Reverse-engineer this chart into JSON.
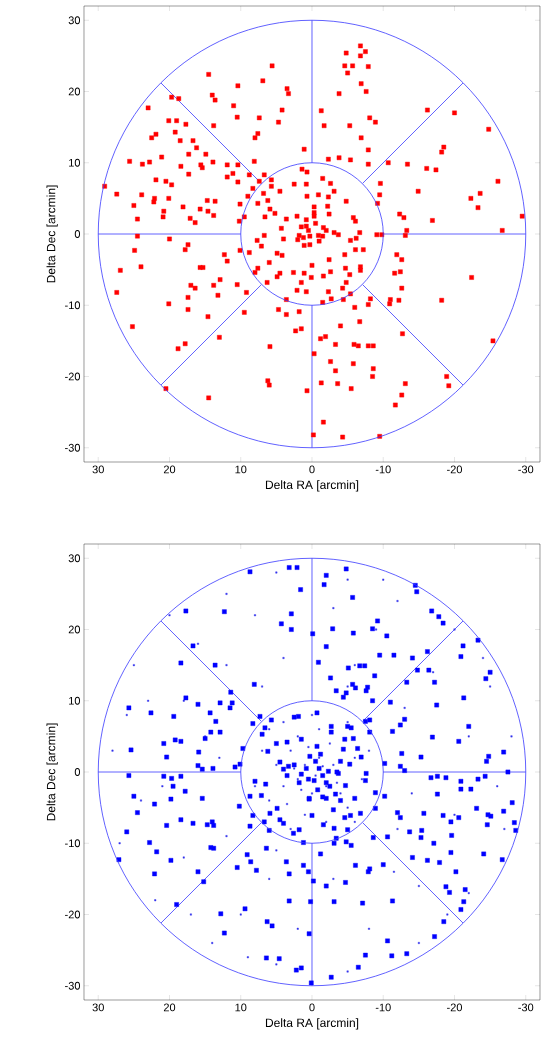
{
  "chart_data": [
    {
      "type": "scatter",
      "xlabel": "Delta RA [arcmin]",
      "ylabel": "Delta Dec [arcmin]",
      "xlim": [
        32,
        -32
      ],
      "ylim": [
        -32,
        32
      ],
      "xticks": [
        30,
        20,
        10,
        0,
        -10,
        -20,
        -30
      ],
      "yticks": [
        -30,
        -20,
        -10,
        0,
        10,
        20,
        30
      ],
      "series": [
        {
          "type": "line",
          "marker": "none",
          "color": "#3a3aff",
          "x": [
            10,
            30
          ],
          "values": [
            0,
            0
          ]
        },
        {
          "type": "line",
          "marker": "none",
          "color": "#3a3aff",
          "x": [
            7.1,
            21.2
          ],
          "values": [
            7.1,
            21.2
          ]
        },
        {
          "type": "line",
          "marker": "none",
          "color": "#3a3aff",
          "x": [
            0,
            0
          ],
          "values": [
            10,
            30
          ]
        },
        {
          "type": "line",
          "marker": "none",
          "color": "#3a3aff",
          "x": [
            -7.1,
            -21.2
          ],
          "values": [
            7.1,
            21.2
          ]
        },
        {
          "type": "line",
          "marker": "none",
          "color": "#3a3aff",
          "x": [
            -10,
            -30
          ],
          "values": [
            0,
            0
          ]
        },
        {
          "type": "line",
          "marker": "none",
          "color": "#3a3aff",
          "x": [
            -7.1,
            -21.2
          ],
          "values": [
            -7.1,
            -21.2
          ]
        },
        {
          "type": "line",
          "marker": "none",
          "color": "#3a3aff",
          "x": [
            0,
            0
          ],
          "values": [
            -10,
            -30
          ]
        },
        {
          "type": "line",
          "marker": "none",
          "color": "#3a3aff",
          "x": [
            7.1,
            21.2
          ],
          "values": [
            -7.1,
            -21.2
          ]
        },
        {
          "marker": "square",
          "color": "#ff0000",
          "x": [
            5.6,
            14.5,
            10.4,
            6.9,
            3.5,
            3.3,
            14.0,
            13.6,
            19.7,
            18.7,
            23.0,
            11.0,
            4.2,
            10.5,
            7.4,
            4.7,
            20.1,
            19.0,
            17.7,
            13.8,
            21.9,
            22.5,
            19.2,
            7.6,
            8.0,
            18.5,
            16.7,
            16.2,
            1.1,
            17.3,
            14.9,
            21.1,
            25.6,
            23.8,
            22.8,
            13.9,
            8.1,
            18.4,
            15.6,
            15.4,
            11.9,
            10.4,
            17.3,
            11.1,
            11.9,
            8.8,
            6.7,
            1.4,
            0.7,
            29.1,
            21.9,
            20.5,
            19.7,
            10.4,
            7.4,
            5.7,
            5.7,
            8.3,
            27.4,
            23.9,
            22.1,
            22.2,
            20.1,
            4.5,
            2.5,
            0.8,
            9.0,
            6.8,
            25.0,
            18.1,
            14.7,
            13.6,
            10.1,
            7.6,
            6.2,
            0.7,
            20.8,
            20.9,
            15.7,
            14.6,
            13.8,
            5.9,
            5.2,
            24.5,
            17.1,
            16.4,
            9.5,
            6.6,
            3.6,
            2.1,
            10.2,
            4.3,
            0.8,
            24.5,
            20.0,
            6.7,
            4.0,
            1.8,
            0.3,
            17.4,
            24.9,
            17.8,
            7.7,
            7.1,
            1.1,
            12.3,
            10.1,
            8.8,
            4.9,
            4.2,
            11.9,
            6.0,
            26.9,
            24.0,
            15.7,
            15.3,
            7.6,
            8.0,
            4.5,
            4.9,
            2.6,
            1.1,
            12.9,
            17.0,
            16.4,
            13.8,
            10.5,
            6.3,
            1.5,
            27.4,
            13.2,
            9.2,
            17.4,
            2.1,
            0.8,
            3.6,
            20.1,
            17.4,
            4.7,
            3.6,
            1.8,
            9.5,
            14.6,
            25.2,
            2.3,
            1.5,
            13.0,
            17.8,
            18.8,
            5.9,
            6.2,
            6.0,
            20.5,
            14.5,
            0.7,
            -0.2,
            -6.8,
            -4.8,
            -7.5,
            -6.8,
            -4.6,
            -5.7,
            -7.9,
            -5.0,
            -6.9,
            -7.6,
            -3.8,
            -1.3,
            -16.2,
            -20.0,
            -1.7,
            -5.3,
            -8.1,
            -8.9,
            -24.8,
            -6.9,
            -7.9,
            -18.5,
            -18.2,
            -2.3,
            -3.8,
            -5.4,
            -7.9,
            -10.7,
            -13.4,
            -16.1,
            -17.4,
            -26.1,
            -1.5,
            -2.6,
            -3.1,
            -9.6,
            -9.5,
            -9.2,
            -14.9,
            -22.3,
            -23.6,
            -23.3,
            -0.9,
            -2.3,
            -4.8,
            -29.5,
            -12.3,
            -12.9,
            -16.9,
            -5.8,
            -6.1,
            -0.3,
            -2.2,
            -2.4,
            -0.3,
            -26.7,
            -13.3,
            -13.1,
            -9.1,
            -9.8,
            -6.7,
            -5.4,
            -6.2,
            -1.6,
            -3.1,
            -3.7,
            -0.9,
            -6.1,
            -7.2,
            -4.6,
            -2.4,
            -11.9,
            -12.6,
            -11.6,
            -12.4,
            -22.4,
            -6.8,
            -6.8,
            -4.7,
            -5.3,
            -2.6,
            -1.6,
            0,
            0.1,
            -4.8,
            -4.3,
            -12.6,
            -2.3,
            -5.4,
            -4.4,
            -1.5,
            -2.7,
            -6.0,
            -8.2,
            -7.9,
            -11.0,
            -10.9,
            -12.2,
            -18.2,
            -6.7,
            -4.0,
            -12.7,
            -25.4,
            -1.2,
            -1.9,
            -3.3,
            -5.9,
            -6.5,
            -7.9,
            -8.6,
            -0.3,
            -2.6,
            -5.8,
            -3.3,
            -8.6,
            -8.5,
            -1.3,
            -3.6,
            -5.5,
            -13.1,
            -12.6,
            -11.7,
            -18.9,
            -19.2,
            -1.6,
            -4.3,
            -9.5,
            0.5,
            1.2,
            -1.0,
            0.3,
            -0.5,
            1.5,
            -1.5,
            2.0,
            -2.0,
            0.8,
            -0.3
          ],
          "values": [
            23.6,
            22.4,
            20.8,
            21.5,
            20.4,
            19.7,
            19.5,
            18.8,
            19.2,
            19.0,
            17.7,
            18.0,
            17.4,
            16.4,
            16.3,
            15.7,
            15.9,
            15.9,
            15.4,
            15.2,
            14.0,
            13.5,
            14.3,
            14.1,
            13.5,
            13.1,
            13.1,
            12.1,
            11.9,
            11.2,
            11.2,
            10.8,
            10.2,
            9.8,
            10.1,
            10.1,
            10.2,
            9.5,
            9.7,
            9.3,
            9.7,
            9.7,
            8.4,
            8.5,
            8.0,
            8.3,
            8.3,
            9.1,
            8.7,
            6.7,
            7.6,
            7.4,
            6.9,
            7.3,
            7.4,
            7.6,
            6.7,
            6.4,
            5.6,
            5.5,
            5.0,
            4.5,
            5.0,
            6.0,
            7.0,
            7.0,
            5.3,
            5.7,
            4.0,
            3.8,
            4.7,
            4.6,
            4.2,
            4.3,
            4.7,
            5.3,
            3.2,
            2.4,
            3.5,
            3.2,
            2.6,
            3.5,
            2.9,
            2.1,
            2.2,
            1.6,
            2.4,
            2.4,
            2.1,
            2.5,
            1.8,
            0.8,
            1.1,
            -0.3,
            -0.7,
            -0.2,
            -0.7,
            -0.2,
            -0.3,
            -1.5,
            -2.3,
            -2.2,
            -0.9,
            -1.7,
            -1.6,
            -2.9,
            -2.3,
            -2.6,
            -2.7,
            -3.0,
            -3.8,
            -4.0,
            -5.1,
            -4.6,
            -4.7,
            -4.7,
            -4.8,
            -5.4,
            -5.5,
            -6.0,
            -5.4,
            -5.5,
            -6.4,
            -7.2,
            -7.6,
            -7.2,
            -7.1,
            -6.8,
            -6.8,
            -8.2,
            -8.6,
            -8.2,
            -8.9,
            -7.9,
            -8.1,
            -9.2,
            -9.8,
            -10.6,
            -10.6,
            -11.3,
            -10.9,
            -11.0,
            -11.6,
            -13.0,
            -13.6,
            -13.3,
            -14.5,
            -15.4,
            -16.1,
            -15.8,
            -20.6,
            -21.2,
            -21.7,
            -23.0,
            -22.0,
            -28.2,
            26.4,
            25.4,
            25.6,
            25.0,
            23.6,
            23.6,
            23.5,
            22.6,
            21.1,
            20.0,
            19.7,
            17.3,
            17.4,
            17.0,
            15.2,
            15.2,
            16.3,
            15.7,
            14.7,
            13.5,
            11.8,
            12.2,
            11.5,
            10.5,
            10.7,
            10.4,
            9.8,
            10.0,
            9.8,
            9.2,
            9.0,
            7.4,
            7.8,
            7.1,
            6.0,
            7.1,
            5.5,
            4.3,
            6.0,
            5.0,
            5.7,
            3.7,
            5.5,
            5.2,
            4.6,
            2.5,
            2.8,
            2.3,
            1.9,
            2.3,
            1.8,
            3.8,
            3.9,
            2.8,
            2.5,
            0.5,
            0.5,
            -0.2,
            -0.1,
            -0.1,
            0.2,
            -0.9,
            -0.6,
            0.9,
            0.2,
            -0.1,
            -0.2,
            -2.2,
            -2.2,
            -2.9,
            -3.6,
            -2.9,
            -3.6,
            -5.5,
            -5.3,
            -6.1,
            -4.6,
            -5.1,
            -4.8,
            -5.7,
            -5.3,
            -5.9,
            -4.4,
            -6.1,
            -6.8,
            -7.6,
            -7.6,
            -8.1,
            -8.4,
            -9.2,
            -9.6,
            -9.1,
            -10.3,
            -9.1,
            -9.9,
            -9.2,
            -9.8,
            -9.3,
            -9.3,
            -12.3,
            -12.9,
            -14.0,
            -15.0,
            -14.7,
            -14.4,
            -15.5,
            -15.5,
            -15.7,
            -15.7,
            -15.7,
            -16.8,
            -17.9,
            -18.2,
            -19.2,
            -18.9,
            -20.0,
            -20.9,
            -21.0,
            -21.7,
            -21.0,
            -22.6,
            -24.0,
            -20.0,
            -21.3,
            -26.4,
            -28.5,
            -28.4,
            0.5,
            -0.5,
            -1.0,
            -1.5,
            1.5,
            1.0,
            -0.3,
            -0.8,
            0.5,
            2.0,
            3.0
          ]
        }
      ]
    },
    {
      "type": "scatter",
      "xlabel": "Delta RA [arcmin]",
      "ylabel": "Delta Dec [arcmin]",
      "xlim": [
        32,
        -32
      ],
      "ylim": [
        -32,
        32
      ],
      "xticks": [
        30,
        20,
        10,
        0,
        -10,
        -20,
        -30
      ],
      "yticks": [
        -30,
        -20,
        -10,
        0,
        10,
        20,
        30
      ],
      "series": [
        {
          "type": "line",
          "marker": "none",
          "color": "#3a3aff",
          "x": [
            10,
            30
          ],
          "values": [
            0,
            0
          ]
        },
        {
          "type": "line",
          "marker": "none",
          "color": "#3a3aff",
          "x": [
            7.1,
            21.2
          ],
          "values": [
            7.1,
            21.2
          ]
        },
        {
          "type": "line",
          "marker": "none",
          "color": "#3a3aff",
          "x": [
            0,
            0
          ],
          "values": [
            10,
            30
          ]
        },
        {
          "type": "line",
          "marker": "none",
          "color": "#3a3aff",
          "x": [
            -7.1,
            -21.2
          ],
          "values": [
            7.1,
            21.2
          ]
        },
        {
          "type": "line",
          "marker": "none",
          "color": "#3a3aff",
          "x": [
            -10,
            -30
          ],
          "values": [
            0,
            0
          ]
        },
        {
          "type": "line",
          "marker": "none",
          "color": "#3a3aff",
          "x": [
            -7.1,
            -21.2
          ],
          "values": [
            -7.1,
            -21.2
          ]
        },
        {
          "type": "line",
          "marker": "none",
          "color": "#3a3aff",
          "x": [
            0,
            0
          ],
          "values": [
            -10,
            -30
          ]
        },
        {
          "type": "line",
          "marker": "none",
          "color": "#3a3aff",
          "x": [
            7.1,
            21.2
          ],
          "values": [
            -7.1,
            -21.2
          ]
        },
        {
          "marker": "square",
          "color": "#3333ee",
          "x": [
            25,
            20,
            12,
            5,
            -5,
            -12,
            -20,
            -25,
            -28,
            -27,
            -22,
            -15,
            -5,
            5,
            14,
            22,
            27,
            28,
            24,
            18,
            16,
            8,
            -3,
            -9,
            -17,
            -22,
            -20,
            -15,
            -8,
            2,
            10,
            18,
            21,
            15,
            12,
            4,
            -6,
            -13,
            -14,
            -11.5,
            -3,
            6,
            12,
            13,
            26,
            -26,
            9,
            -10,
            17,
            -19,
            23,
            -24,
            7,
            -5,
            -12,
            5,
            1,
            -1,
            2,
            -2,
            3,
            -3,
            0,
            4,
            -4,
            2,
            -1,
            5,
            -6,
            6,
            -5,
            1,
            -2,
            7,
            -7,
            3,
            8,
            -8,
            0,
            4,
            -5,
            6,
            -6,
            0.5,
            -2.5,
            3.5,
            -3.5,
            1.5,
            -0.5,
            2.5,
            -1.5
          ],
          "values": [
            15,
            22,
            25,
            28,
            27,
            24,
            20,
            12,
            5,
            -8,
            -17,
            -24,
            -28,
            -27,
            -24,
            -18,
            -10,
            3,
            -4,
            10,
            18,
            22,
            23,
            20,
            14,
            5,
            -6,
            -16,
            -22,
            -22,
            -20,
            -12,
            -2,
            5,
            15,
            16,
            15,
            9,
            -3,
            -14,
            -15,
            -15,
            -9,
            2,
            8,
            -2,
            -26,
            27,
            -20,
            -20,
            10,
            16,
            12,
            12,
            -8,
            -11,
            1,
            2,
            -1,
            -2,
            3,
            1,
            -3,
            -2,
            -3,
            5,
            6,
            1,
            2,
            -4,
            -5,
            -6,
            -7,
            3,
            -1,
            -8,
            -2,
            3,
            8,
            7,
            7,
            6,
            -7,
            3.5,
            4,
            -4.5,
            -1.5,
            -2.5,
            -0.5,
            0.5,
            0.8
          ]
        },
        {
          "marker": "square",
          "color": "#0000ff",
          "x": [
            8.7,
            3.2,
            2.1,
            1.6,
            17.7,
            12.3,
            2.9,
            4.3,
            2.9,
            -0.1,
            16.7,
            18.4,
            13.6,
            8.1,
            11.4,
            17.7,
            25.7,
            22.6,
            19.4,
            16.0,
            14.3,
            12.9,
            11.5,
            11.2,
            13.5,
            7.3,
            5.7,
            8.3,
            6.6,
            7.0,
            2.5,
            1.9,
            14.2,
            12.9,
            15.0,
            20.8,
            19.2,
            18.4,
            25.4,
            15.9,
            20.4,
            9.7,
            6.2,
            5.0,
            3.5,
            1.5,
            16.0,
            15.4,
            13.9,
            10.8,
            10.1,
            4.5,
            4.0,
            3.3,
            25.7,
            20.8,
            19.7,
            18.4,
            19.5,
            17.8,
            25.0,
            19.8,
            15.4,
            22.1,
            24.5,
            18.4,
            20.4,
            16.7,
            14.7,
            14.0,
            13.8,
            26.0,
            10.2,
            8.0,
            6.5,
            7.1,
            8.7,
            4.9,
            5.9,
            8.3,
            6.7,
            8.7,
            6.0,
            4.5,
            4.0,
            1.8,
            2.6,
            0.4,
            22.8,
            21.8,
            14.2,
            13.8,
            27.1,
            19.8,
            6.4,
            9.1,
            8.6,
            7.8,
            10.5,
            16.0,
            22.1,
            15.2,
            3.6,
            3.2,
            1.2,
            0.5,
            1.2,
            19.0,
            9.4,
            12.8,
            3.2,
            0.2,
            6.3,
            5.6,
            12.3,
            0.4,
            6.4,
            4.6,
            2.2,
            1.5,
            0.1,
            -4.8,
            -2.0,
            -1.7,
            -5.7,
            -14.5,
            -14.7,
            -16.8,
            -17.8,
            -18.4,
            -9.2,
            -8.5,
            -2.9,
            -5.8,
            -10.5,
            -2.0,
            -23.3,
            -21.2,
            -20.9,
            -16.2,
            -14.1,
            -11.5,
            -9.5,
            -0.9,
            -5.1,
            -6.7,
            -7.4,
            -2.6,
            -8.8,
            -14.8,
            -16.4,
            -25.0,
            -24.4,
            -13.3,
            -17.2,
            -5.7,
            -6.1,
            -7.8,
            -7.6,
            -3.4,
            -4.8,
            -4.4,
            -8.5,
            -11.0,
            -21.3,
            -17.5,
            -0.7,
            -8.1,
            -7.5,
            -13.0,
            -12.4,
            -11.3,
            -22.0,
            -2.7,
            -5.0,
            -5.5,
            -2.7,
            -8.1,
            -20.6,
            -16.9,
            -4.6,
            -5.8,
            -6.4,
            -4.4,
            -0.7,
            -6.9,
            -12.6,
            -15.3,
            -24.8,
            -24.5,
            -26.9,
            -10.2,
            -5.3,
            -12.4,
            -13.0,
            -27.5,
            -16.7,
            -17.6,
            -18.8,
            -24.3,
            -23.3,
            -20.9,
            -20.9,
            -22.3,
            -7.6,
            -7.5,
            -3.7,
            -2.3,
            -4.7,
            -8.9,
            -10.2,
            -17.6,
            -3.3,
            -4.0,
            -6.0,
            -2.0,
            0.4,
            -8.9,
            -3.0,
            -28.1,
            -23.1,
            -26.9,
            -24.7,
            -25.1,
            -20.6,
            -18.4,
            -19.5,
            -15.7,
            -12.0,
            -12.4,
            -6.8,
            -4.6,
            -5.4,
            0,
            -1.6,
            -3.1,
            -5.0,
            -24.6,
            -28.4,
            -28.6,
            -13.7,
            -15.4,
            -15.3,
            -19.6,
            -17.1,
            -8.6,
            -10.6,
            -3.4,
            -4.8,
            -5.5,
            -3.1,
            -1.2,
            -19.5,
            -24.1,
            -26.7,
            -14.1,
            -16.2,
            -17.9,
            -10.0,
            -6.1,
            -8.1,
            -7.9,
            -20.2,
            -0.2,
            -2.0,
            -4.7,
            -21.5,
            -18.8,
            -19.3,
            -21.3,
            -20.9,
            -3.1,
            -7.1,
            -11.3,
            -18.5,
            -17.2,
            -10.6,
            -7.5,
            -11.2,
            -13.3,
            -6.5,
            -2.7,
            -0.5,
            -1.0,
            -1.5,
            -0.3,
            -2.0,
            -3.5,
            -1.2,
            -2.5,
            -0.8,
            -4.0,
            -1.5,
            0.8,
            1.5,
            0.5,
            2.5,
            1.8,
            0.3,
            3.5
          ],
          "values": [
            28.1,
            28.7,
            28.7,
            25.6,
            22.6,
            22.5,
            22.2,
            20.8,
            20.0,
            19.4,
            17.7,
            15.3,
            15.0,
            12.3,
            11.2,
            10.4,
            9.0,
            8.3,
            7.8,
            9.5,
            8.3,
            9.7,
            9.0,
            9.7,
            7.1,
            7.8,
            7.3,
            6.8,
            6.2,
            5.3,
            7.7,
            7.8,
            5.6,
            5.6,
            4.7,
            4.0,
            4.5,
            4.3,
            3.1,
            2.8,
            2.1,
            3.3,
            2.9,
            4.0,
            4.2,
            4.6,
            0.9,
            0.4,
            0.5,
            0.7,
            1.1,
            1.4,
            0.4,
            0.8,
            -0.5,
            -0.6,
            -0.9,
            -0.6,
            -2.0,
            -2.7,
            -3.4,
            -3.8,
            -3.7,
            -4.5,
            -5.7,
            -6.7,
            -7.5,
            -7.2,
            -7.4,
            -7.0,
            -7.5,
            -8.4,
            -4.8,
            -1.3,
            -1.7,
            -3.3,
            -3.4,
            -5.1,
            -5.8,
            -6.1,
            -7.0,
            -7.6,
            -8.2,
            -6.7,
            -7.2,
            -8.1,
            -8.6,
            -3.7,
            -9.9,
            -11.2,
            -10.6,
            -10.7,
            -12.3,
            -12.4,
            -10.7,
            -11.6,
            -12.6,
            -13.8,
            -13.4,
            -14.0,
            -14.3,
            -15.4,
            -12.6,
            -14.3,
            -13.1,
            -14.0,
            -9.9,
            -18.6,
            -19.2,
            -19.9,
            -18.1,
            -18.2,
            -21.0,
            -21.6,
            -22.6,
            -22.7,
            -26.1,
            -26.2,
            -27.8,
            -27.5,
            -29.6,
            28.5,
            27.6,
            26.3,
            24.5,
            26.2,
            25.3,
            22.6,
            21.8,
            20.9,
            21.2,
            20.1,
            20.1,
            19.5,
            19.1,
            17.6,
            18.5,
            17.7,
            16.2,
            16.9,
            16.0,
            16.4,
            16.4,
            15.4,
            14.6,
            14.9,
            14.9,
            13.2,
            13.5,
            14.3,
            14.3,
            14.0,
            13.1,
            12.6,
            12.6,
            12.3,
            11.8,
            11.9,
            11.4,
            11.4,
            11.1,
            10.5,
            10.0,
            9.8,
            10.4,
            9.4,
            8.3,
            7.3,
            7.1,
            7.4,
            6.6,
            5.7,
            6.4,
            6.4,
            6.4,
            6.2,
            5.6,
            5.6,
            4.3,
            4.9,
            4.6,
            4.7,
            3.3,
            3.2,
            3.6,
            2.1,
            2.6,
            2.1,
            2.2,
            1.5,
            2.8,
            1.2,
            1.1,
            0.8,
            0.2,
            0,
            -0.8,
            -0.6,
            -0.8,
            -0.6,
            -1.0,
            -1.3,
            -2.4,
            -2.4,
            -0.2,
            -1.2,
            -0.2,
            0.1,
            -1.9,
            -2.9,
            -3.4,
            -3.1,
            -3.1,
            -4.0,
            -3.7,
            -3.7,
            -3.8,
            -5.1,
            -5.3,
            -4.3,
            -5.1,
            -5.5,
            -6.0,
            -6.2,
            -6.4,
            -6.1,
            -7.0,
            -5.8,
            -5.7,
            -6.4,
            -5.8,
            -6.4,
            -6.1,
            -6.1,
            -7.4,
            -7.9,
            -8.1,
            -7.4,
            -7.1,
            -8.2,
            -8.4,
            -8.2,
            -9.2,
            -8.9,
            -10.0,
            -9.2,
            -9.1,
            -9.3,
            -9.8,
            -10.3,
            -10.0,
            -11.5,
            -11.3,
            -11.5,
            -12.3,
            -12.0,
            -12.4,
            -12.7,
            -13.0,
            -13.1,
            -13.6,
            -14.0,
            -14.0,
            -15.3,
            -16.0,
            -15.5,
            -16.5,
            -16.1,
            -16.9,
            -18.2,
            -19.3,
            -18.2,
            -18.4,
            -18.1,
            -21.0,
            -23.1,
            -23.7,
            -25.7,
            -25.8,
            -25.5,
            -27.4,
            -28.8,
            1.5,
            0.5,
            -0.5,
            -1.2,
            -1.5,
            0.0,
            2.5,
            -2.0,
            -2.5,
            1.5,
            -3.5,
            0.5,
            -0.3,
            -1.0,
            1.0,
            -1.5,
            2.2,
            -0.5
          ]
        }
      ]
    }
  ]
}
